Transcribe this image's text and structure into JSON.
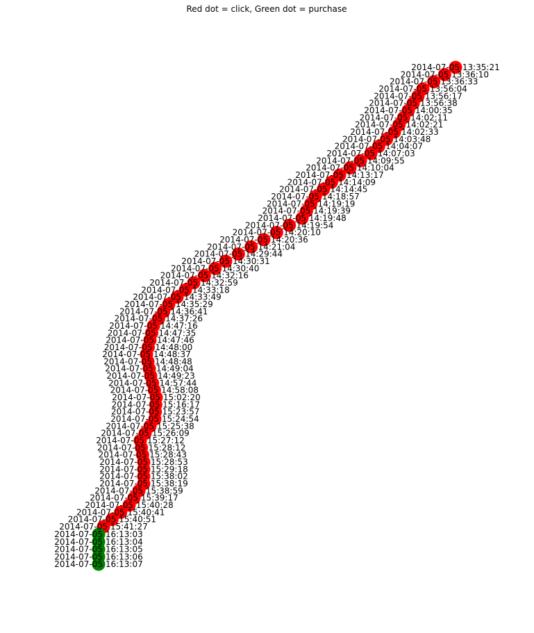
{
  "title": "Red dot = click,  Green dot = purchase",
  "colors": {
    "click": "#ff0000",
    "purchase": "#008000",
    "edge": "#000000",
    "label": "#000000"
  },
  "nodes": [
    {
      "label": "2014-07-05 13:35:21",
      "type": "click"
    },
    {
      "label": "2014-07-05 13:36:10",
      "type": "click"
    },
    {
      "label": "2014-07-05 13:36:33",
      "type": "click"
    },
    {
      "label": "2014-07-05 13:56:04",
      "type": "click"
    },
    {
      "label": "2014-07-05 13:56:17",
      "type": "click"
    },
    {
      "label": "2014-07-05 13:56:38",
      "type": "click"
    },
    {
      "label": "2014-07-05 14:00:35",
      "type": "click"
    },
    {
      "label": "2014-07-05 14:02:11",
      "type": "click"
    },
    {
      "label": "2014-07-05 14:02:21",
      "type": "click"
    },
    {
      "label": "2014-07-05 14:02:33",
      "type": "click"
    },
    {
      "label": "2014-07-05 14:03:48",
      "type": "click"
    },
    {
      "label": "2014-07-05 14:04:07",
      "type": "click"
    },
    {
      "label": "2014-07-05 14:07:03",
      "type": "click"
    },
    {
      "label": "2014-07-05 14:09:55",
      "type": "click"
    },
    {
      "label": "2014-07-05 14:10:04",
      "type": "click"
    },
    {
      "label": "2014-07-05 14:13:17",
      "type": "click"
    },
    {
      "label": "2014-07-05 14:14:09",
      "type": "click"
    },
    {
      "label": "2014-07-05 14:14:45",
      "type": "click"
    },
    {
      "label": "2014-07-05 14:18:57",
      "type": "click"
    },
    {
      "label": "2014-07-05 14:19:19",
      "type": "click"
    },
    {
      "label": "2014-07-05 14:19:39",
      "type": "click"
    },
    {
      "label": "2014-07-05 14:19:48",
      "type": "click"
    },
    {
      "label": "2014-07-05 14:19:54",
      "type": "click"
    },
    {
      "label": "2014-07-05 14:20:10",
      "type": "click"
    },
    {
      "label": "2014-07-05 14:20:36",
      "type": "click"
    },
    {
      "label": "2014-07-05 14:21:04",
      "type": "click"
    },
    {
      "label": "2014-07-05 14:29:44",
      "type": "click"
    },
    {
      "label": "2014-07-05 14:30:31",
      "type": "click"
    },
    {
      "label": "2014-07-05 14:30:40",
      "type": "click"
    },
    {
      "label": "2014-07-05 14:32:16",
      "type": "click"
    },
    {
      "label": "2014-07-05 14:32:59",
      "type": "click"
    },
    {
      "label": "2014-07-05 14:33:18",
      "type": "click"
    },
    {
      "label": "2014-07-05 14:33:49",
      "type": "click"
    },
    {
      "label": "2014-07-05 14:35:29",
      "type": "click"
    },
    {
      "label": "2014-07-05 14:36:41",
      "type": "click"
    },
    {
      "label": "2014-07-05 14:37:26",
      "type": "click"
    },
    {
      "label": "2014-07-05 14:47:16",
      "type": "click"
    },
    {
      "label": "2014-07-05 14:47:35",
      "type": "click"
    },
    {
      "label": "2014-07-05 14:47:46",
      "type": "click"
    },
    {
      "label": "2014-07-05 14:48:00",
      "type": "click"
    },
    {
      "label": "2014-07-05 14:48:37",
      "type": "click"
    },
    {
      "label": "2014-07-05 14:48:48",
      "type": "click"
    },
    {
      "label": "2014-07-05 14:49:04",
      "type": "click"
    },
    {
      "label": "2014-07-05 14:49:23",
      "type": "click"
    },
    {
      "label": "2014-07-05 14:57:44",
      "type": "click"
    },
    {
      "label": "2014-07-05 14:58:08",
      "type": "click"
    },
    {
      "label": "2014-07-05 15:02:20",
      "type": "click"
    },
    {
      "label": "2014-07-05 15:16:17",
      "type": "click"
    },
    {
      "label": "2014-07-05 15:23:57",
      "type": "click"
    },
    {
      "label": "2014-07-05 15:24:54",
      "type": "click"
    },
    {
      "label": "2014-07-05 15:25:38",
      "type": "click"
    },
    {
      "label": "2014-07-05 15:26:09",
      "type": "click"
    },
    {
      "label": "2014-07-05 15:27:12",
      "type": "click"
    },
    {
      "label": "2014-07-05 15:28:12",
      "type": "click"
    },
    {
      "label": "2014-07-05 15:28:43",
      "type": "click"
    },
    {
      "label": "2014-07-05 15:28:53",
      "type": "click"
    },
    {
      "label": "2014-07-05 15:29:18",
      "type": "click"
    },
    {
      "label": "2014-07-05 15:38:02",
      "type": "click"
    },
    {
      "label": "2014-07-05 15:38:19",
      "type": "click"
    },
    {
      "label": "2014-07-05 15:38:59",
      "type": "click"
    },
    {
      "label": "2014-07-05 15:39:17",
      "type": "click"
    },
    {
      "label": "2014-07-05 15:40:28",
      "type": "click"
    },
    {
      "label": "2014-07-05 15:40:41",
      "type": "click"
    },
    {
      "label": "2014-07-05 15:40:51",
      "type": "click"
    },
    {
      "label": "2014-07-05 15:41:27",
      "type": "click"
    },
    {
      "label": "2014-07-05 16:13:03",
      "type": "purchase"
    },
    {
      "label": "2014-07-05 16:13:04",
      "type": "purchase"
    },
    {
      "label": "2014-07-05 16:13:05",
      "type": "purchase"
    },
    {
      "label": "2014-07-05 16:13:06",
      "type": "purchase"
    },
    {
      "label": "2014-07-05 16:13:07",
      "type": "purchase"
    }
  ]
}
